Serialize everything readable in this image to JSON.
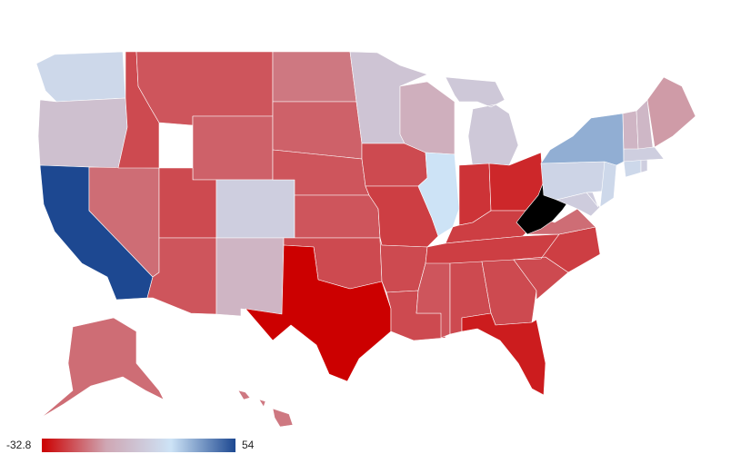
{
  "legend": {
    "min_label": "-32.8",
    "max_label": "54",
    "min": -32.8,
    "max": 54,
    "colors": [
      "#cc0000",
      "#cfa7b4",
      "#cde3f6",
      "#1d4891"
    ]
  },
  "states": {
    "WA": 20,
    "OR": 8,
    "CA": 54,
    "NV": -14,
    "ID": -20,
    "MT": -18,
    "WY": -16,
    "UT": -20,
    "AZ": -18,
    "CO": 15,
    "NM": 3,
    "ND": -12,
    "SD": -16,
    "NE": -18,
    "KS": -18,
    "OK": -20,
    "TX": -32.8,
    "MN": 10,
    "IA": -20,
    "MO": -22,
    "AR": -20,
    "LA": -20,
    "WI": 0,
    "IL": 25,
    "MI": 12,
    "IN": -24,
    "OH": -26,
    "KY": -22,
    "TN": -22,
    "MS": -18,
    "AL": -20,
    "GA": -20,
    "FL": -28,
    "SC": -20,
    "NC": -22,
    "VA": -14,
    "WV": null,
    "MD": 14,
    "DE": 14,
    "PA": 18,
    "NJ": 20,
    "NY": 35,
    "CT": 20,
    "RI": 15,
    "MA": 15,
    "VT": 3,
    "NH": 4,
    "ME": -6,
    "AK": -14,
    "HI": -12
  }
}
